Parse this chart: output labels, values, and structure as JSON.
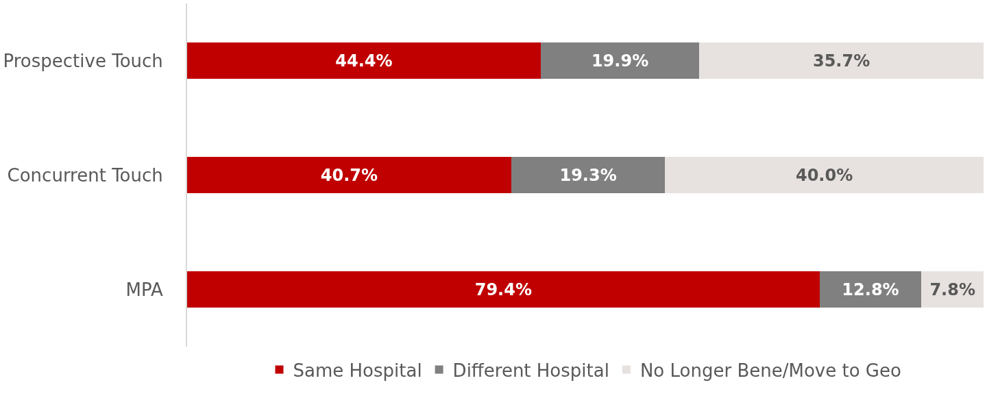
{
  "chart_data": {
    "type": "bar",
    "orientation": "horizontal",
    "stacked": true,
    "categories": [
      "Prospective Touch",
      "Concurrent Touch",
      "MPA"
    ],
    "series": [
      {
        "name": "Same Hospital",
        "color": "#c00000",
        "values": [
          44.4,
          40.7,
          79.4
        ],
        "value_labels": [
          "44.4%",
          "40.7%",
          "79.4%"
        ]
      },
      {
        "name": "Different Hospital",
        "color": "#808080",
        "values": [
          19.9,
          19.3,
          12.8
        ],
        "value_labels": [
          "19.9%",
          "19.3%",
          "12.8%"
        ]
      },
      {
        "name": "No Longer Bene/Move to Geo",
        "color": "#e7e2df",
        "values": [
          35.7,
          40.0,
          7.8
        ],
        "value_labels": [
          "35.7%",
          "40.0%",
          "7.8%"
        ]
      }
    ],
    "xlim": [
      0,
      100
    ],
    "tick_labels": "y",
    "legend": "bottom"
  }
}
